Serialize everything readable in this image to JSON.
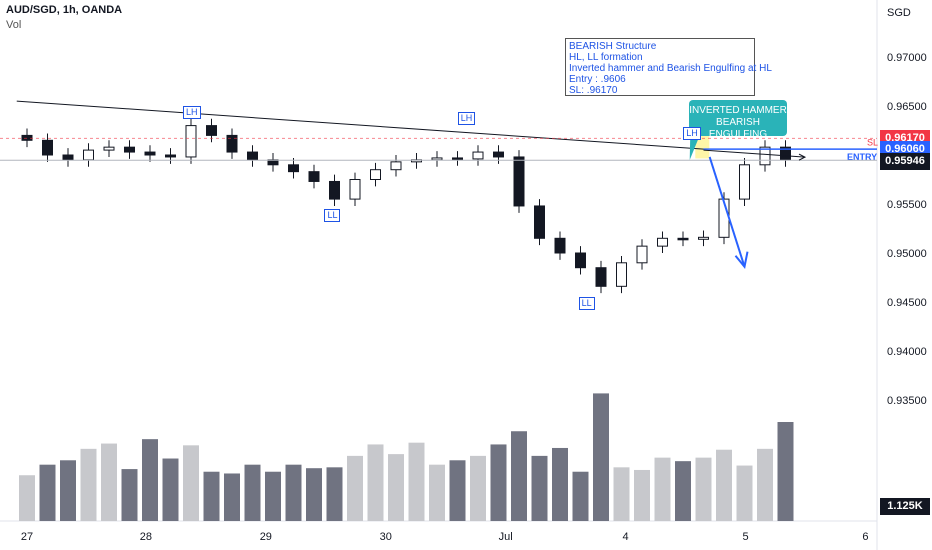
{
  "header": {
    "symbol_line": "AUD/SGD, 1h, OANDA",
    "volume_label": "Vol"
  },
  "axis": {
    "currency": "SGD",
    "y_ticks": [
      "0.97000",
      "0.96500",
      "0.96000",
      "0.95500",
      "0.95000",
      "0.94500",
      "0.94000",
      "0.93500"
    ],
    "x_ticks": [
      "27",
      "28",
      "29",
      "30",
      "Jul",
      "4",
      "5",
      "6"
    ]
  },
  "annotation_box": {
    "lines": [
      "BEARISH Structure",
      "HL, LL formation",
      "Inverted hammer and Bearish Engulfing at HL",
      "Entry : .9606",
      "SL: .96170"
    ]
  },
  "callout": {
    "lines": [
      "INVERTED HAMMER",
      "BEARISH ENGULFING"
    ]
  },
  "pattern_labels": [
    {
      "text": "LH",
      "x_index": 8.0,
      "price": 0.9644
    },
    {
      "text": "LH",
      "x_index": 21.4,
      "price": 0.9638
    },
    {
      "text": "LL",
      "x_index": 14.9,
      "price": 0.9539
    },
    {
      "text": "LH",
      "x_index": 32.4,
      "price": 0.9622
    },
    {
      "text": "LL",
      "x_index": 27.3,
      "price": 0.9449
    }
  ],
  "levels": {
    "sl": {
      "price": 0.9617,
      "label": "SL",
      "tag": "0.96170",
      "color": "#f23645"
    },
    "entry": {
      "price": 0.9606,
      "label": "ENTRY",
      "tag": "0.96060",
      "color": "#2962ff"
    },
    "last": {
      "price": 0.95946,
      "tag": "0.95946",
      "color": "#131722"
    },
    "volume_tag": "1.125K"
  },
  "colors": {
    "bull": "#ffffff",
    "bear": "#131722",
    "volume_bull": "#c7c8cc",
    "volume_bear": "#707381",
    "trendline": "#131722",
    "arrow": "#2962ff"
  },
  "chart_data": {
    "type": "candlestick",
    "title": "",
    "xlabel": "",
    "ylabel": "SGD",
    "ylim": [
      0.9315,
      0.9745
    ],
    "x_ticks": [
      {
        "label": "27",
        "index": 0.0
      },
      {
        "label": "28",
        "index": 5.8
      },
      {
        "label": "29",
        "index": 11.65
      },
      {
        "label": "30",
        "index": 17.5
      },
      {
        "label": "Jul",
        "index": 23.35
      },
      {
        "label": "4",
        "index": 29.2
      },
      {
        "label": "5",
        "index": 35.05
      },
      {
        "label": "6",
        "index": 40.9
      }
    ],
    "close": [
      0.9615,
      0.96,
      0.9595,
      0.9605,
      0.9608,
      0.9603,
      0.96,
      0.9598,
      0.963,
      0.962,
      0.9603,
      0.9595,
      0.959,
      0.9583,
      0.9573,
      0.9555,
      0.9575,
      0.9585,
      0.9593,
      0.9595,
      0.9597,
      0.9596,
      0.9603,
      0.9598,
      0.9548,
      0.9515,
      0.95,
      0.9485,
      0.9466,
      0.949,
      0.9507,
      0.9515,
      0.9514,
      0.9516,
      0.9555,
      0.959,
      0.9608,
      0.9595
    ],
    "volume": [
      520,
      640,
      690,
      820,
      880,
      590,
      930,
      710,
      860,
      560,
      540,
      640,
      560,
      640,
      600,
      610,
      740,
      870,
      760,
      890,
      640,
      690,
      740,
      870,
      1020,
      740,
      830,
      560,
      1450,
      610,
      580,
      720,
      680,
      720,
      810,
      630,
      820,
      1125
    ],
    "trendline": {
      "from": {
        "index": -0.5,
        "price": 0.9655
      },
      "to": {
        "index": 33.0,
        "price": 0.9606
      }
    },
    "projection": {
      "from": {
        "index": 33.3,
        "price": 0.9598
      },
      "to": {
        "index": 35.0,
        "price": 0.9486
      }
    }
  }
}
